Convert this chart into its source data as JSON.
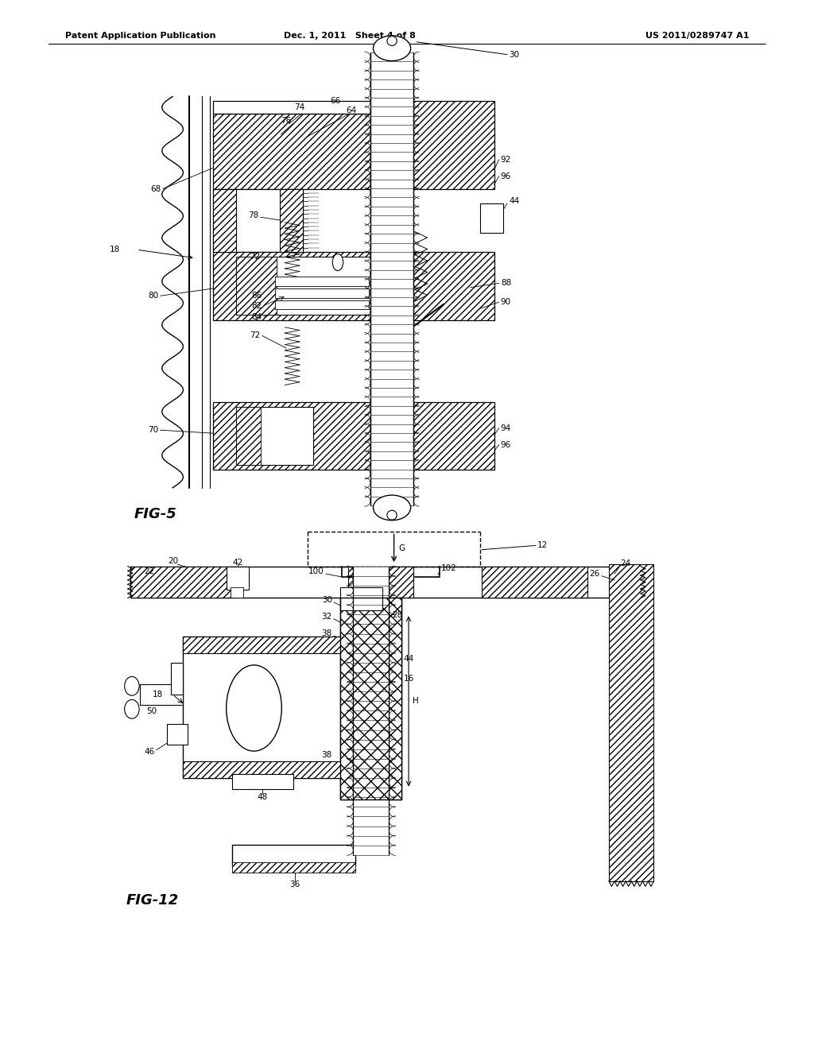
{
  "background_color": "#ffffff",
  "header_left": "Patent Application Publication",
  "header_mid": "Dec. 1, 2011   Sheet 4 of 8",
  "header_right": "US 2011/0289747 A1",
  "fig5_label": "FIG-5",
  "fig12_label": "FIG-12"
}
